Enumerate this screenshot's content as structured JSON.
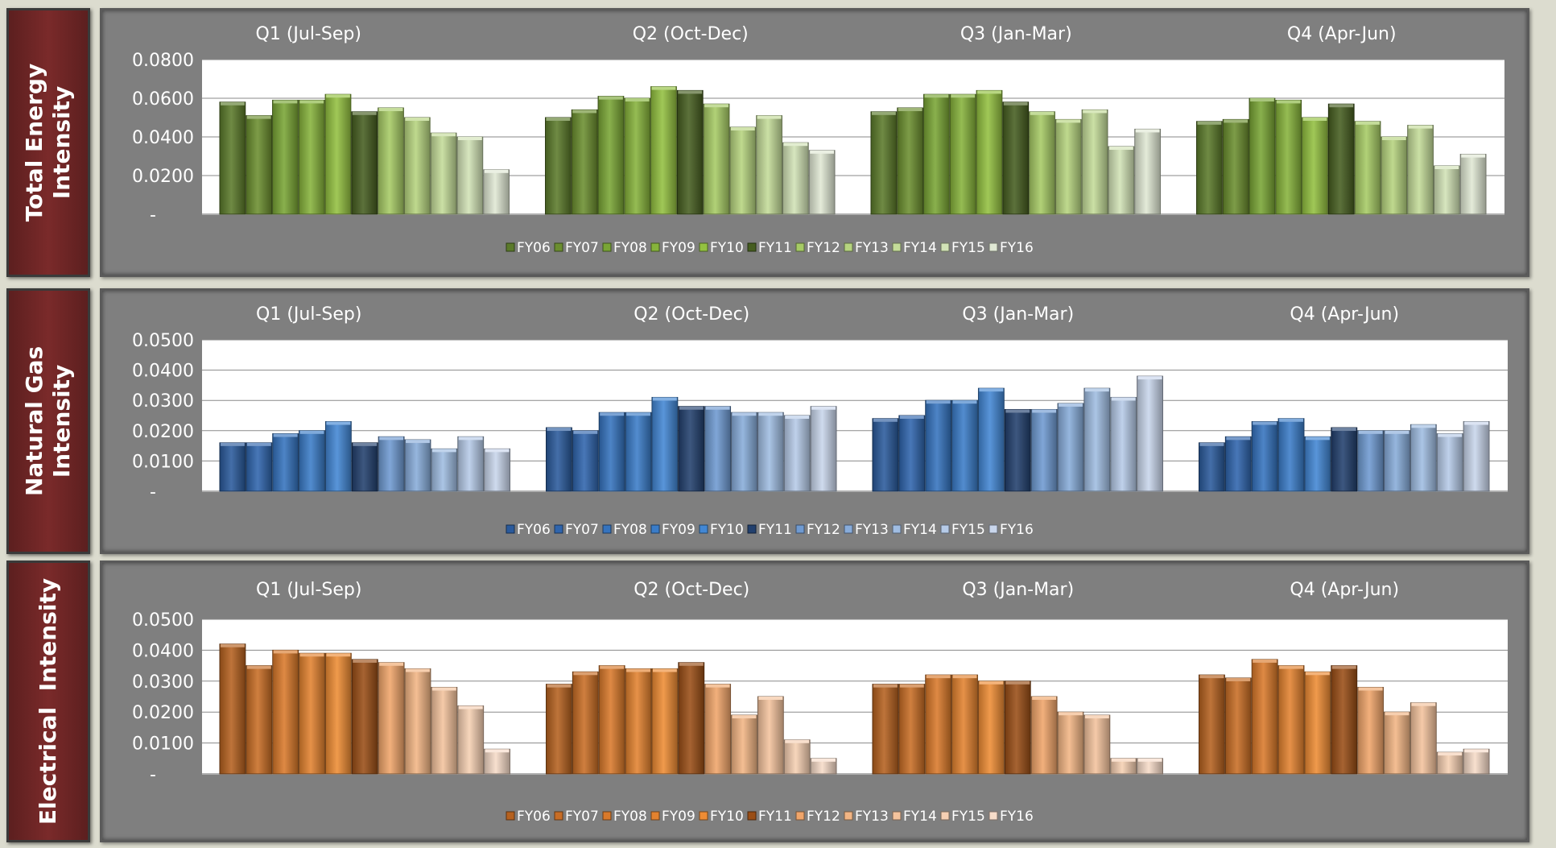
{
  "quarters": [
    "Q1 (Jul-Sep)",
    "Q2 (Oct-Dec)",
    "Q3 (Jan-Mar)",
    "Q4 (Apr-Jun)"
  ],
  "legend": [
    "FY06",
    "FY07",
    "FY08",
    "FY09",
    "FY10",
    "FY11",
    "FY12",
    "FY13",
    "FY14",
    "FY15",
    "FY16"
  ],
  "chart_data": [
    {
      "type": "bar",
      "row_label": "Total Energy\nIntensity",
      "categories": [
        "Q1 (Jul-Sep)",
        "Q2 (Oct-Dec)",
        "Q3 (Jan-Mar)",
        "Q4 (Apr-Jun)"
      ],
      "ylim": [
        0,
        0.08
      ],
      "yticks": [
        "-",
        "0.0200",
        "0.0400",
        "0.0600",
        "0.0800"
      ],
      "series": [
        {
          "name": "FY06",
          "values": [
            0.058,
            0.05,
            0.053,
            0.048
          ]
        },
        {
          "name": "FY07",
          "values": [
            0.051,
            0.054,
            0.055,
            0.049
          ]
        },
        {
          "name": "FY08",
          "values": [
            0.059,
            0.061,
            0.062,
            0.06
          ]
        },
        {
          "name": "FY09",
          "values": [
            0.059,
            0.06,
            0.062,
            0.059
          ]
        },
        {
          "name": "FY10",
          "values": [
            0.062,
            0.066,
            0.064,
            0.05
          ]
        },
        {
          "name": "FY11",
          "values": [
            0.053,
            0.064,
            0.058,
            0.057
          ]
        },
        {
          "name": "FY12",
          "values": [
            0.055,
            0.057,
            0.053,
            0.048
          ]
        },
        {
          "name": "FY13",
          "values": [
            0.05,
            0.045,
            0.049,
            0.04
          ]
        },
        {
          "name": "FY14",
          "values": [
            0.042,
            0.051,
            0.054,
            0.046
          ]
        },
        {
          "name": "FY15",
          "values": [
            0.04,
            0.037,
            0.035,
            0.025
          ]
        },
        {
          "name": "FY16",
          "values": [
            0.023,
            0.033,
            0.044,
            0.031
          ]
        }
      ],
      "colors": [
        "#5b7a2a",
        "#6b8e2f",
        "#79a535",
        "#86b33b",
        "#93c140",
        "#465e20",
        "#a6cb65",
        "#b6d47f",
        "#c4dc99",
        "#d2e3b6",
        "#e0e8d4"
      ]
    },
    {
      "type": "bar",
      "row_label": "Natural Gas\nIntensity",
      "categories": [
        "Q1 (Jul-Sep)",
        "Q2 (Oct-Dec)",
        "Q3 (Jan-Mar)",
        "Q4 (Apr-Jun)"
      ],
      "ylim": [
        0,
        0.05
      ],
      "yticks": [
        "-",
        "0.0100",
        "0.0200",
        "0.0300",
        "0.0400",
        "0.0500"
      ],
      "series": [
        {
          "name": "FY06",
          "values": [
            0.016,
            0.021,
            0.024,
            0.016
          ]
        },
        {
          "name": "FY07",
          "values": [
            0.016,
            0.02,
            0.025,
            0.018
          ]
        },
        {
          "name": "FY08",
          "values": [
            0.019,
            0.026,
            0.03,
            0.023
          ]
        },
        {
          "name": "FY09",
          "values": [
            0.02,
            0.026,
            0.03,
            0.024
          ]
        },
        {
          "name": "FY10",
          "values": [
            0.023,
            0.031,
            0.034,
            0.018
          ]
        },
        {
          "name": "FY11",
          "values": [
            0.016,
            0.028,
            0.027,
            0.021
          ]
        },
        {
          "name": "FY12",
          "values": [
            0.018,
            0.028,
            0.027,
            0.02
          ]
        },
        {
          "name": "FY13",
          "values": [
            0.017,
            0.026,
            0.029,
            0.02
          ]
        },
        {
          "name": "FY14",
          "values": [
            0.014,
            0.026,
            0.034,
            0.022
          ]
        },
        {
          "name": "FY15",
          "values": [
            0.018,
            0.025,
            0.031,
            0.019
          ]
        },
        {
          "name": "FY16",
          "values": [
            0.014,
            0.028,
            0.038,
            0.023
          ]
        }
      ],
      "colors": [
        "#2a5a9c",
        "#2f65ad",
        "#3573be",
        "#3a7cc8",
        "#4287d4",
        "#22406e",
        "#6f9ad1",
        "#88acda",
        "#a0bde2",
        "#b6cbe8",
        "#c9d6ec"
      ]
    },
    {
      "type": "bar",
      "row_label": "Electrical  Intensity",
      "categories": [
        "Q1 (Jul-Sep)",
        "Q2 (Oct-Dec)",
        "Q3 (Jan-Mar)",
        "Q4 (Apr-Jun)"
      ],
      "ylim": [
        0,
        0.05
      ],
      "yticks": [
        "-",
        "0.0100",
        "0.0200",
        "0.0300",
        "0.0400",
        "0.0500"
      ],
      "series": [
        {
          "name": "FY06",
          "values": [
            0.042,
            0.029,
            0.029,
            0.032
          ]
        },
        {
          "name": "FY07",
          "values": [
            0.035,
            0.033,
            0.029,
            0.031
          ]
        },
        {
          "name": "FY08",
          "values": [
            0.04,
            0.035,
            0.032,
            0.037
          ]
        },
        {
          "name": "FY09",
          "values": [
            0.039,
            0.034,
            0.032,
            0.035
          ]
        },
        {
          "name": "FY10",
          "values": [
            0.039,
            0.034,
            0.03,
            0.033
          ]
        },
        {
          "name": "FY11",
          "values": [
            0.037,
            0.036,
            0.03,
            0.035
          ]
        },
        {
          "name": "FY12",
          "values": [
            0.036,
            0.029,
            0.025,
            0.028
          ]
        },
        {
          "name": "FY13",
          "values": [
            0.034,
            0.019,
            0.02,
            0.02
          ]
        },
        {
          "name": "FY14",
          "values": [
            0.028,
            0.025,
            0.019,
            0.023
          ]
        },
        {
          "name": "FY15",
          "values": [
            0.022,
            0.011,
            0.005,
            0.007
          ]
        },
        {
          "name": "FY16",
          "values": [
            0.008,
            0.005,
            0.005,
            0.008
          ]
        }
      ],
      "colors": [
        "#b5611f",
        "#c86d25",
        "#d9792a",
        "#e3822f",
        "#ee8c34",
        "#9a4e16",
        "#f0a56a",
        "#f2b584",
        "#f4c39d",
        "#f6d0b3",
        "#f7dcc9"
      ]
    }
  ]
}
